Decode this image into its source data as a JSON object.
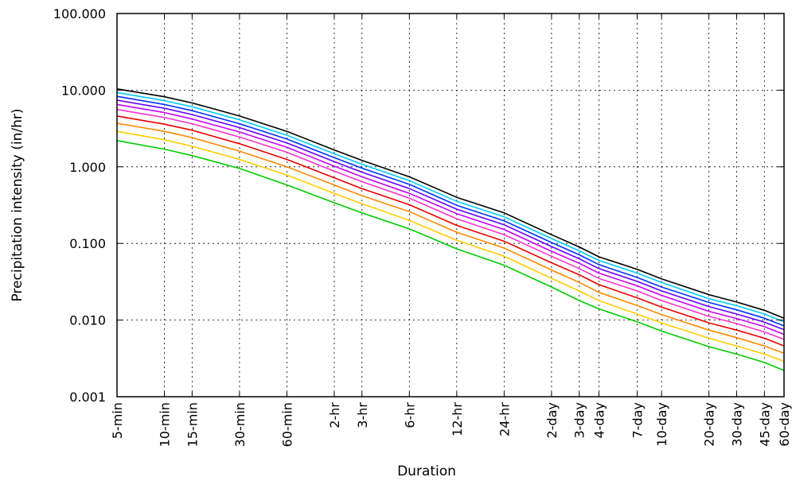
{
  "chart_data": {
    "type": "line",
    "title": "",
    "xlabel": "Duration",
    "ylabel": "Precipitation intensity (in/hr)",
    "y_scale": "log",
    "ylim": [
      0.001,
      100
    ],
    "grid": true,
    "y_ticks": [
      "0.001",
      "0.010",
      "0.100",
      "1.000",
      "10.000",
      "100.000"
    ],
    "x_ticks": [
      "5-min",
      "10-min",
      "15-min",
      "30-min",
      "60-min",
      "2-hr",
      "3-hr",
      "6-hr",
      "12-hr",
      "24-hr",
      "2-day",
      "3-day",
      "4-day",
      "7-day",
      "10-day",
      "20-day",
      "30-day",
      "45-day",
      "60-day"
    ],
    "x_minutes": [
      5,
      10,
      15,
      30,
      60,
      120,
      180,
      360,
      720,
      1440,
      2880,
      4320,
      5760,
      10080,
      14400,
      28800,
      43200,
      64800,
      86400
    ],
    "series": [
      {
        "color": "#00cc00",
        "values": [
          2.2,
          1.7,
          1.4,
          0.95,
          0.58,
          0.34,
          0.25,
          0.155,
          0.085,
          0.052,
          0.027,
          0.018,
          0.014,
          0.0095,
          0.0072,
          0.0045,
          0.0036,
          0.0028,
          0.0022
        ]
      },
      {
        "color": "#ffcc00",
        "values": [
          2.9,
          2.25,
          1.85,
          1.25,
          0.78,
          0.45,
          0.33,
          0.2,
          0.11,
          0.068,
          0.035,
          0.024,
          0.018,
          0.012,
          0.0092,
          0.0058,
          0.0046,
          0.0036,
          0.0029
        ]
      },
      {
        "color": "#ff8800",
        "values": [
          3.7,
          2.9,
          2.4,
          1.6,
          1.0,
          0.58,
          0.42,
          0.26,
          0.14,
          0.087,
          0.045,
          0.031,
          0.023,
          0.0155,
          0.0118,
          0.0074,
          0.0059,
          0.0046,
          0.0037
        ]
      },
      {
        "color": "#ee0000",
        "values": [
          4.6,
          3.6,
          3.0,
          2.0,
          1.25,
          0.72,
          0.52,
          0.32,
          0.172,
          0.107,
          0.056,
          0.039,
          0.029,
          0.0195,
          0.0148,
          0.0092,
          0.0074,
          0.0058,
          0.0046
        ]
      },
      {
        "color": "#ff33cc",
        "values": [
          5.6,
          4.4,
          3.65,
          2.45,
          1.55,
          0.88,
          0.64,
          0.39,
          0.21,
          0.13,
          0.068,
          0.047,
          0.035,
          0.024,
          0.018,
          0.0112,
          0.009,
          0.007,
          0.0056
        ]
      },
      {
        "color": "#cc00ff",
        "values": [
          6.5,
          5.1,
          4.2,
          2.85,
          1.8,
          1.02,
          0.74,
          0.45,
          0.245,
          0.152,
          0.079,
          0.055,
          0.041,
          0.028,
          0.021,
          0.013,
          0.0105,
          0.0082,
          0.0065
        ]
      },
      {
        "color": "#6600ff",
        "values": [
          7.4,
          5.8,
          4.8,
          3.25,
          2.05,
          1.17,
          0.85,
          0.52,
          0.28,
          0.175,
          0.091,
          0.063,
          0.047,
          0.032,
          0.024,
          0.015,
          0.012,
          0.0094,
          0.0075
        ]
      },
      {
        "color": "#0033ff",
        "values": [
          8.3,
          6.5,
          5.4,
          3.65,
          2.3,
          1.32,
          0.96,
          0.59,
          0.315,
          0.197,
          0.103,
          0.071,
          0.053,
          0.036,
          0.027,
          0.017,
          0.0136,
          0.0106,
          0.0084
        ]
      },
      {
        "color": "#00ccff",
        "values": [
          9.3,
          7.3,
          6.05,
          4.1,
          2.58,
          1.48,
          1.08,
          0.66,
          0.355,
          0.222,
          0.116,
          0.08,
          0.06,
          0.041,
          0.031,
          0.019,
          0.0154,
          0.012,
          0.0095
        ]
      },
      {
        "color": "#000000",
        "values": [
          10.4,
          8.2,
          6.8,
          4.6,
          2.9,
          1.66,
          1.21,
          0.74,
          0.4,
          0.25,
          0.13,
          0.09,
          0.067,
          0.046,
          0.0345,
          0.0215,
          0.0172,
          0.0134,
          0.0106
        ]
      }
    ]
  }
}
